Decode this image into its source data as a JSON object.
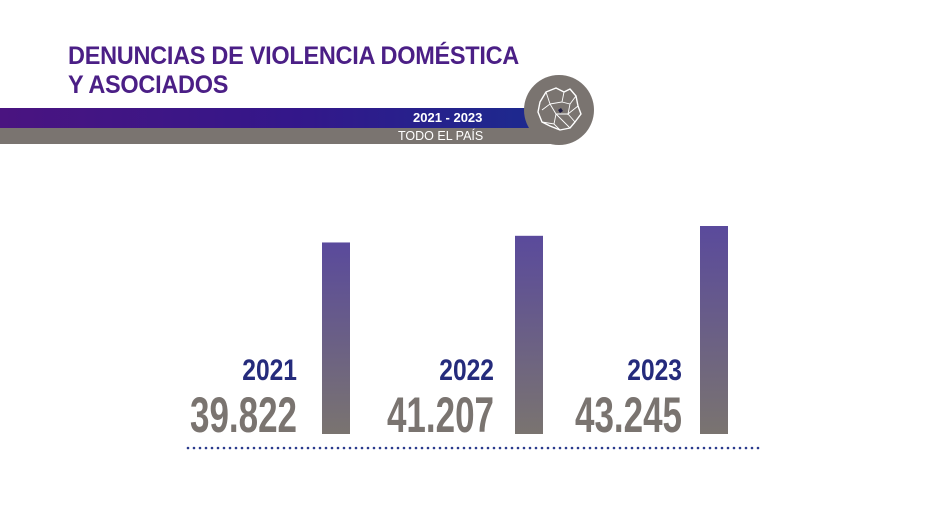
{
  "header": {
    "title_line1": "DENUNCIAS DE VIOLENCIA DOMÉSTICA",
    "title_line2": "Y ASOCIADOS",
    "period": "2021 - 2023",
    "scope": "TODO EL PAÍS"
  },
  "colors": {
    "title": "#4b1f86",
    "band_purple": "#3a1a88",
    "band_gray": "#7a7470",
    "bar_top": "#5a4a9c",
    "bar_bottom": "#7a7470",
    "year_label": "#252b7c",
    "value_label": "#7a7470",
    "baseline": "#2a3a8c"
  },
  "icons": {
    "map": "uruguay-map-icon"
  },
  "chart_data": {
    "type": "bar",
    "categories": [
      "2021",
      "2022",
      "2023"
    ],
    "values": [
      39822,
      41207,
      43245
    ],
    "value_labels": [
      "39.822",
      "41.207",
      "43.245"
    ],
    "title": "",
    "xlabel": "",
    "ylabel": "",
    "ylim": [
      0,
      43245
    ],
    "grid": false
  }
}
